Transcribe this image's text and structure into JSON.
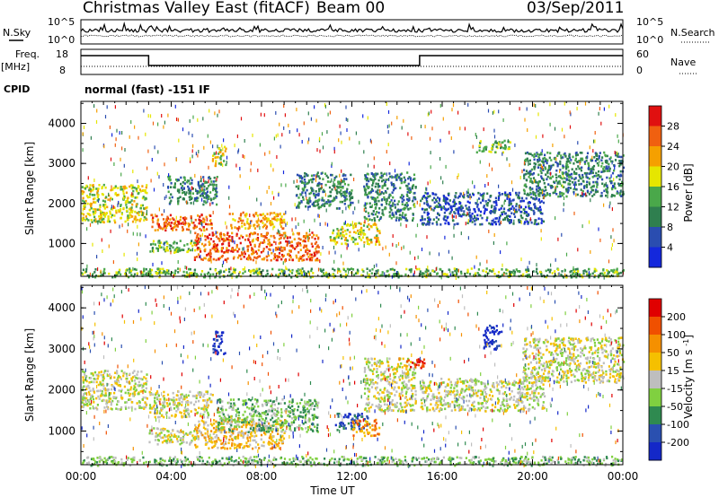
{
  "header": {
    "title": "Christmas Valley East (fitACF)",
    "beam": "Beam 00",
    "date": "03/Sep/2011"
  },
  "nsky_panel": {
    "left_label": "N.Sky",
    "right_label": "N.Search",
    "left_ticks": [
      "10^5",
      "10^0"
    ],
    "right_ticks": [
      "10^5",
      "10^0"
    ]
  },
  "freq_panel": {
    "left_label_1": "Freq.",
    "left_label_2": "[MHz]",
    "right_label": "Nave",
    "left_ticks": [
      "18",
      "8"
    ],
    "right_ticks": [
      "60",
      "0"
    ],
    "freq_steps_hours": [
      [
        0,
        3,
        1
      ],
      [
        3,
        15,
        0
      ],
      [
        15,
        24,
        1
      ]
    ]
  },
  "cpid": {
    "label": "CPID",
    "text": "normal (fast) -151 IF"
  },
  "chart_data": [
    {
      "type": "heatmap",
      "name": "power",
      "ylabel": "Slant Range [km]",
      "xlabel": "Time UT",
      "xlim_hours": [
        0,
        24
      ],
      "ylim_km": [
        180,
        4550
      ],
      "x_ticks": [
        "00:00",
        "04:00",
        "08:00",
        "12:00",
        "16:00",
        "20:00",
        "00:00"
      ],
      "y_ticks": [
        1000,
        2000,
        3000,
        4000
      ],
      "colorbar": {
        "label": "Power [dB]",
        "ticks": [
          "4",
          "8",
          "12",
          "16",
          "20",
          "24",
          "28"
        ],
        "colors": [
          "#1428dc",
          "#2a4db0",
          "#2f7f4f",
          "#4aa84a",
          "#e6e600",
          "#f5a000",
          "#f06010",
          "#e01010"
        ]
      },
      "echo_regions": [
        {
          "t": [
            0.0,
            2.9
          ],
          "r": [
            1550,
            2500
          ],
          "level": 4
        },
        {
          "t": [
            3.0,
            5.8
          ],
          "r": [
            1350,
            1750
          ],
          "level": 6
        },
        {
          "t": [
            3.0,
            5.2
          ],
          "r": [
            800,
            1100
          ],
          "level": 3
        },
        {
          "t": [
            3.8,
            6.0
          ],
          "r": [
            2000,
            2700
          ],
          "level": 2
        },
        {
          "t": [
            5.8,
            6.4
          ],
          "r": [
            2950,
            3450
          ],
          "level": 4
        },
        {
          "t": [
            5.0,
            10.5
          ],
          "r": [
            600,
            1300
          ],
          "level": 6
        },
        {
          "t": [
            6.5,
            9.0
          ],
          "r": [
            1400,
            1800
          ],
          "level": 5
        },
        {
          "t": [
            9.5,
            12.0
          ],
          "r": [
            1900,
            2800
          ],
          "level": 2
        },
        {
          "t": [
            11.0,
            13.2
          ],
          "r": [
            1000,
            1550
          ],
          "level": 4
        },
        {
          "t": [
            12.5,
            14.8
          ],
          "r": [
            1600,
            2800
          ],
          "level": 2
        },
        {
          "t": [
            15.0,
            20.5
          ],
          "r": [
            1500,
            2300
          ],
          "level": 1
        },
        {
          "t": [
            17.5,
            19.0
          ],
          "r": [
            3300,
            3600
          ],
          "level": 3
        },
        {
          "t": [
            19.5,
            24.0
          ],
          "r": [
            2200,
            3300
          ],
          "level": 2
        },
        {
          "t": [
            0.0,
            24.0
          ],
          "r": [
            180,
            400
          ],
          "level": 3
        }
      ]
    },
    {
      "type": "heatmap",
      "name": "velocity",
      "ylabel": "Slant Range [km]",
      "xlabel": "Time UT",
      "xlim_hours": [
        0,
        24
      ],
      "ylim_km": [
        180,
        4550
      ],
      "x_ticks": [
        "00:00",
        "04:00",
        "08:00",
        "12:00",
        "16:00",
        "20:00",
        "00:00"
      ],
      "y_ticks": [
        1000,
        2000,
        3000,
        4000
      ],
      "colorbar": {
        "label": "Velocity [m s^-1]",
        "ticks": [
          "200",
          "100",
          "50",
          "15",
          "-15",
          "-50",
          "-100",
          "-200"
        ],
        "colors": [
          "#1428c8",
          "#2a50b0",
          "#2f8a50",
          "#80d040",
          "#bebebe",
          "#f5c000",
          "#f59000",
          "#f05000",
          "#e00000"
        ]
      },
      "echo_regions": [
        {
          "t": [
            0.0,
            2.9
          ],
          "r": [
            1550,
            2500
          ],
          "level": 4
        },
        {
          "t": [
            3.0,
            5.8
          ],
          "r": [
            1350,
            2000
          ],
          "level": 4
        },
        {
          "t": [
            3.0,
            5.0
          ],
          "r": [
            700,
            1100
          ],
          "level": 4
        },
        {
          "t": [
            5.8,
            6.4
          ],
          "r": [
            2900,
            3450
          ],
          "level": 0
        },
        {
          "t": [
            5.0,
            9.0
          ],
          "r": [
            600,
            1300
          ],
          "level": 5
        },
        {
          "t": [
            6.0,
            10.5
          ],
          "r": [
            1000,
            1800
          ],
          "level": 3
        },
        {
          "t": [
            11.2,
            12.8
          ],
          "r": [
            1050,
            1450
          ],
          "level": 1
        },
        {
          "t": [
            12.0,
            13.2
          ],
          "r": [
            900,
            1300
          ],
          "level": 6
        },
        {
          "t": [
            12.5,
            14.8
          ],
          "r": [
            1500,
            2800
          ],
          "level": 4
        },
        {
          "t": [
            15.0,
            20.5
          ],
          "r": [
            1500,
            2300
          ],
          "level": 4
        },
        {
          "t": [
            19.5,
            24.0
          ],
          "r": [
            2200,
            3300
          ],
          "level": 4
        },
        {
          "t": [
            14.4,
            15.2
          ],
          "r": [
            2550,
            2800
          ],
          "level": 8
        },
        {
          "t": [
            17.8,
            18.6
          ],
          "r": [
            3000,
            3600
          ],
          "level": 0
        },
        {
          "t": [
            0.0,
            24.0
          ],
          "r": [
            180,
            400
          ],
          "level": 3
        }
      ]
    }
  ]
}
